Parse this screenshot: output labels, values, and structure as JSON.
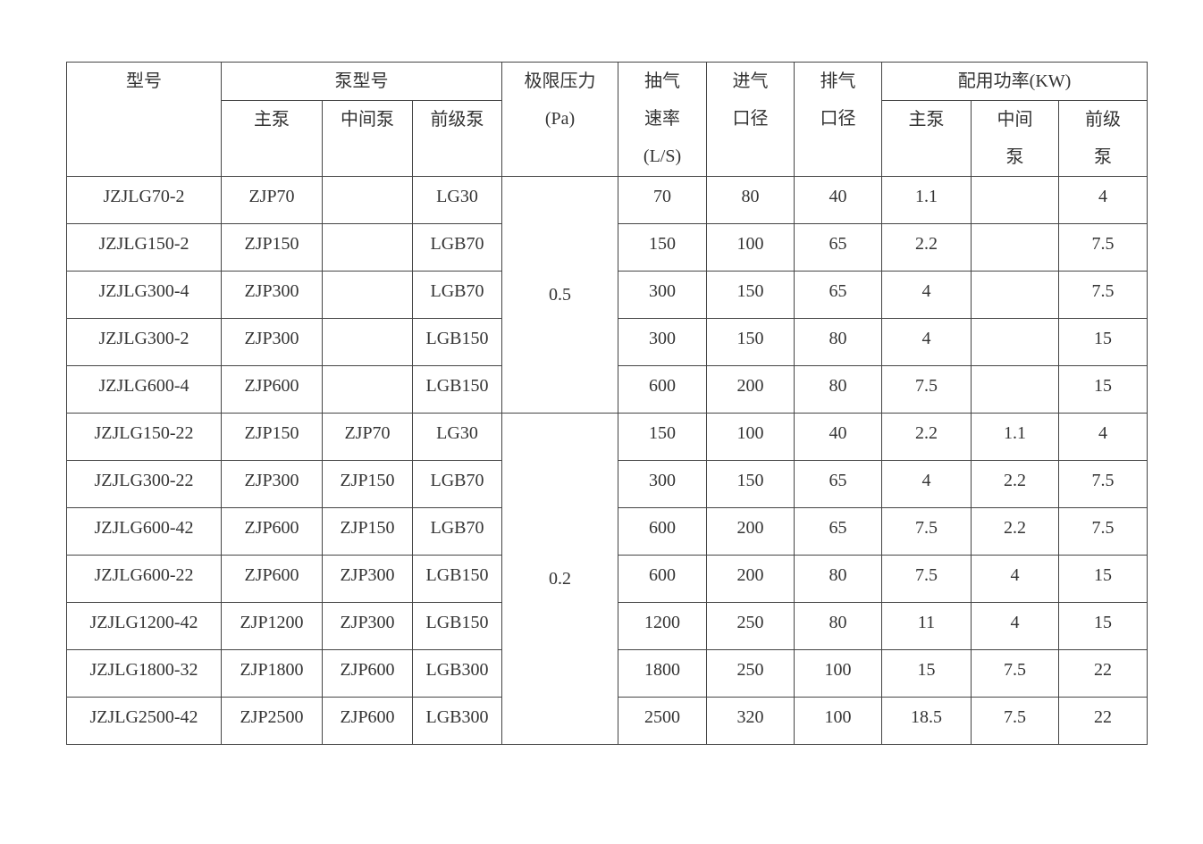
{
  "header": {
    "model": "型号",
    "pump_model": "泵型号",
    "main_pump": "主泵",
    "mid_pump": "中间泵",
    "fore_pump": "前级泵",
    "ultimate_pressure": [
      "极限压力",
      "(Pa)"
    ],
    "pumping_speed": [
      "抽气",
      "速率",
      "(L/S)"
    ],
    "inlet": [
      "进气",
      "口径"
    ],
    "outlet": [
      "排气",
      "口径"
    ],
    "power": "配用功率(KW)",
    "power_main": "主泵",
    "power_mid": [
      "中间",
      "泵"
    ],
    "power_fore": [
      "前级",
      "泵"
    ]
  },
  "pressure_groups": [
    {
      "value": "0.5",
      "rows": 5
    },
    {
      "value": "0.2",
      "rows": 7
    }
  ],
  "rows": [
    [
      "JZJLG70-2",
      "ZJP70",
      "",
      "LG30",
      "70",
      "80",
      "40",
      "1.1",
      "",
      "4"
    ],
    [
      "JZJLG150-2",
      "ZJP150",
      "",
      "LGB70",
      "150",
      "100",
      "65",
      "2.2",
      "",
      "7.5"
    ],
    [
      "JZJLG300-4",
      "ZJP300",
      "",
      "LGB70",
      "300",
      "150",
      "65",
      "4",
      "",
      "7.5"
    ],
    [
      "JZJLG300-2",
      "ZJP300",
      "",
      "LGB150",
      "300",
      "150",
      "80",
      "4",
      "",
      "15"
    ],
    [
      "JZJLG600-4",
      "ZJP600",
      "",
      "LGB150",
      "600",
      "200",
      "80",
      "7.5",
      "",
      "15"
    ],
    [
      "JZJLG150-22",
      "ZJP150",
      "ZJP70",
      "LG30",
      "150",
      "100",
      "40",
      "2.2",
      "1.1",
      "4"
    ],
    [
      "JZJLG300-22",
      "ZJP300",
      "ZJP150",
      "LGB70",
      "300",
      "150",
      "65",
      "4",
      "2.2",
      "7.5"
    ],
    [
      "JZJLG600-42",
      "ZJP600",
      "ZJP150",
      "LGB70",
      "600",
      "200",
      "65",
      "7.5",
      "2.2",
      "7.5"
    ],
    [
      "JZJLG600-22",
      "ZJP600",
      "ZJP300",
      "LGB150",
      "600",
      "200",
      "80",
      "7.5",
      "4",
      "15"
    ],
    [
      "JZJLG1200-42",
      "ZJP1200",
      "ZJP300",
      "LGB150",
      "1200",
      "250",
      "80",
      "11",
      "4",
      "15"
    ],
    [
      "JZJLG1800-32",
      "ZJP1800",
      "ZJP600",
      "LGB300",
      "1800",
      "250",
      "100",
      "15",
      "7.5",
      "22"
    ],
    [
      "JZJLG2500-42",
      "ZJP2500",
      "ZJP600",
      "LGB300",
      "2500",
      "320",
      "100",
      "18.5",
      "7.5",
      "22"
    ]
  ]
}
